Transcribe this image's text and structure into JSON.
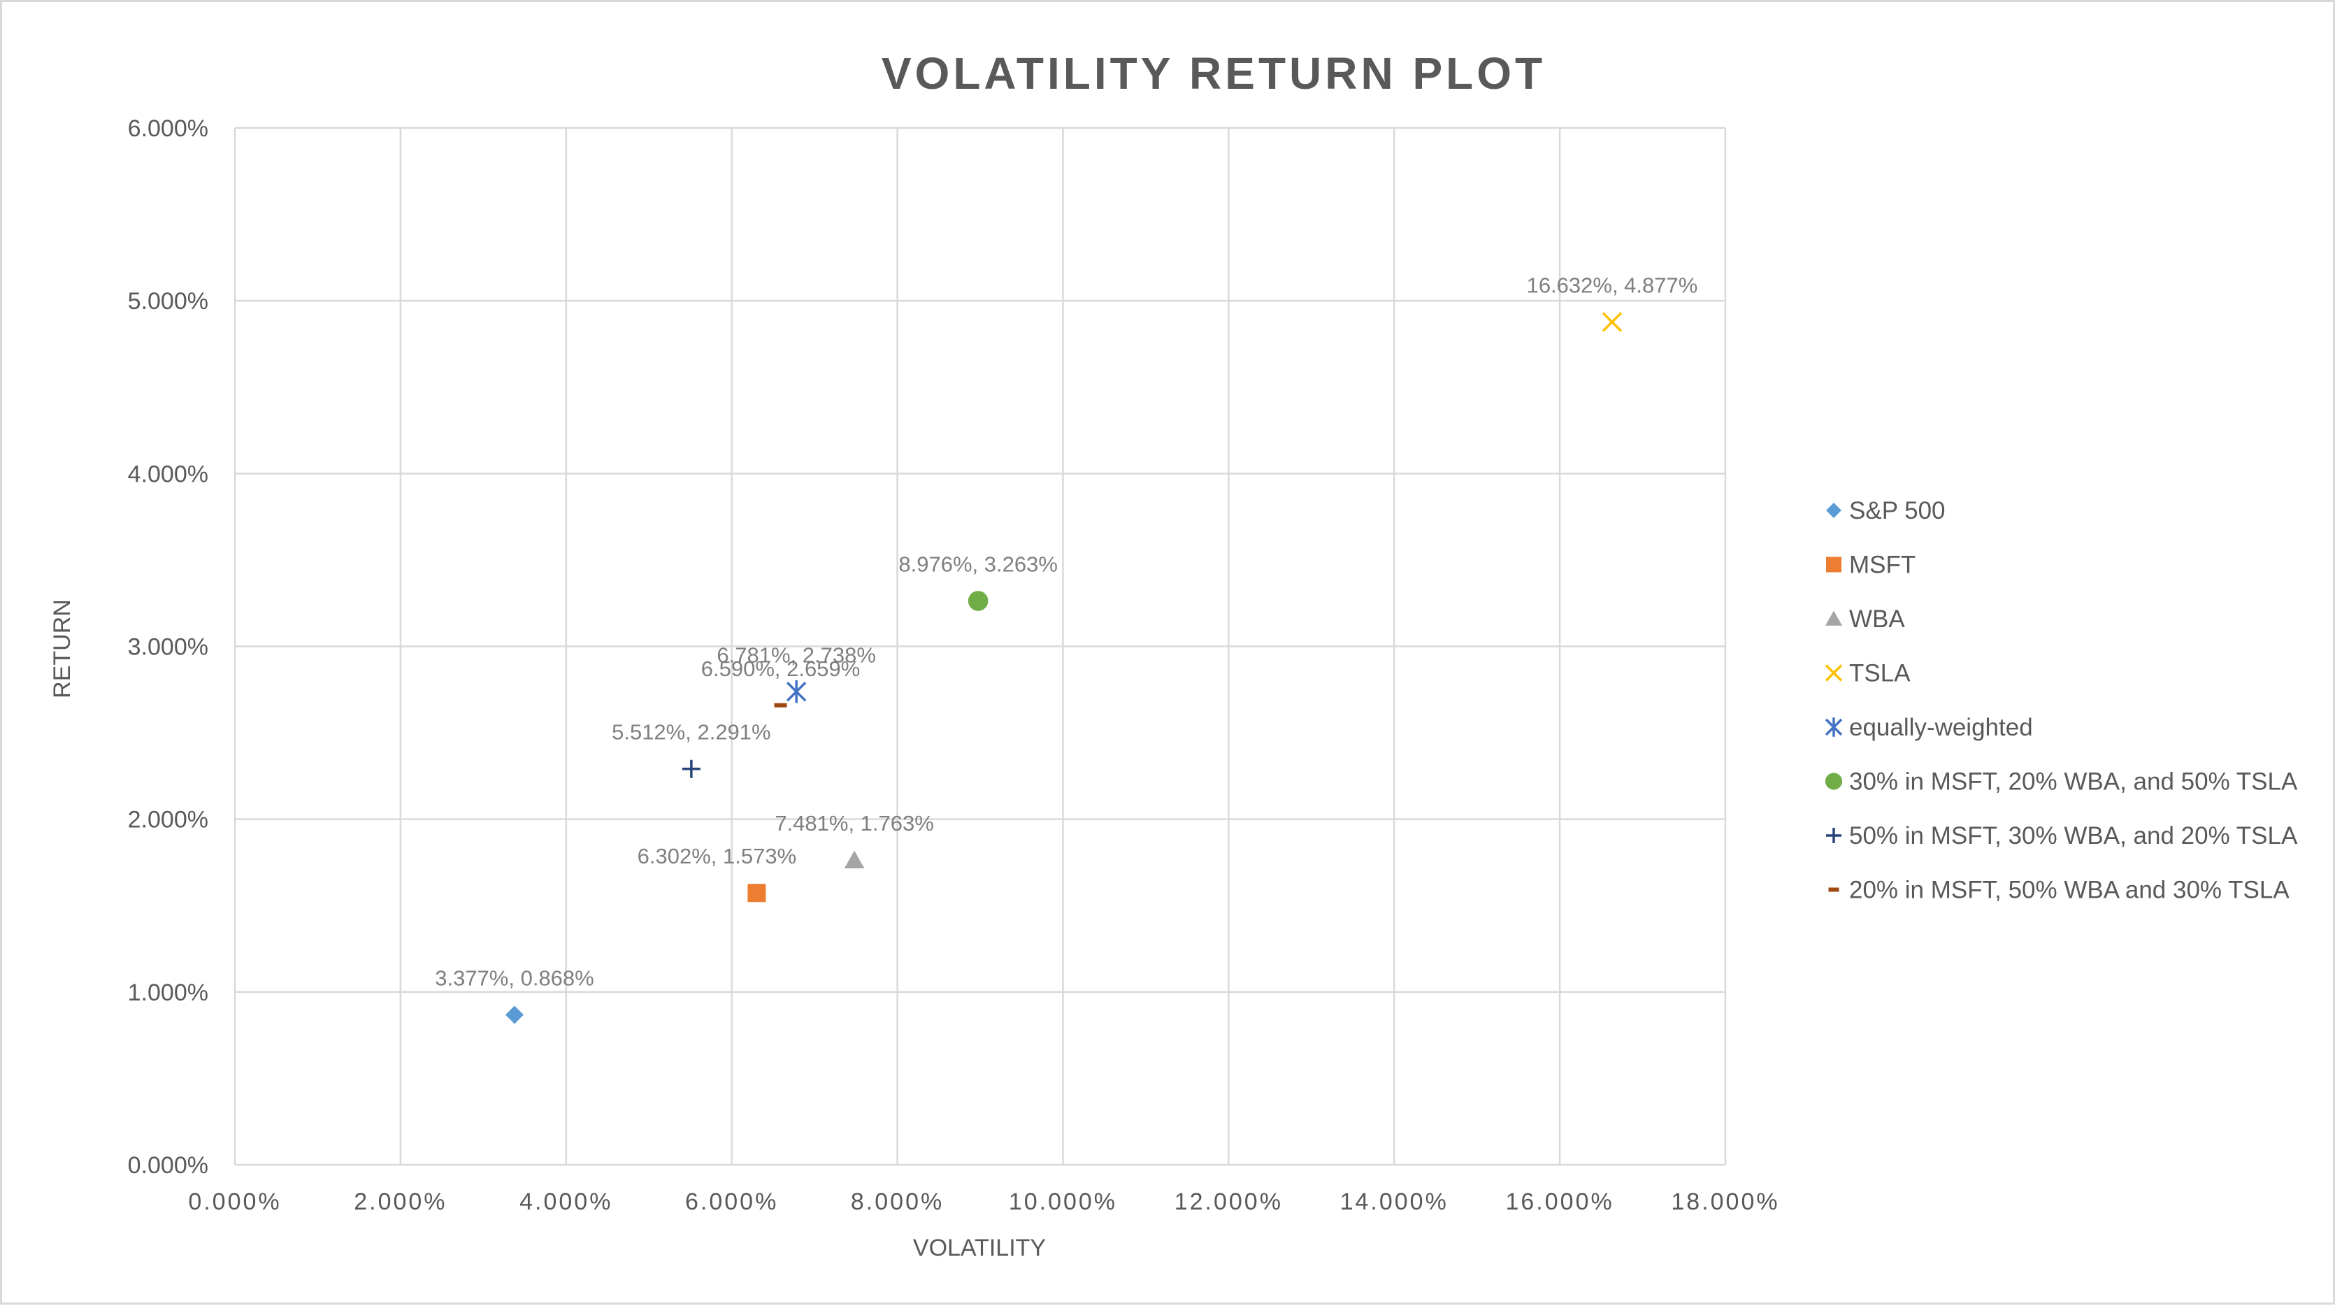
{
  "chart_data": {
    "type": "scatter",
    "title": "VOLATILITY RETURN PLOT",
    "xlabel": "VOLATILITY",
    "ylabel": "RETURN",
    "xlim": [
      0,
      18
    ],
    "ylim": [
      0,
      6
    ],
    "x_ticks": [
      "0.000%",
      "2.000%",
      "4.000%",
      "6.000%",
      "8.000%",
      "10.000%",
      "12.000%",
      "14.000%",
      "16.000%",
      "18.000%"
    ],
    "y_ticks": [
      "0.000%",
      "1.000%",
      "2.000%",
      "3.000%",
      "4.000%",
      "5.000%",
      "6.000%"
    ],
    "grid": true,
    "legend_position": "right",
    "series": [
      {
        "name": "S&P 500",
        "marker": "diamond",
        "color": "#5b9bd5",
        "x": 3.377,
        "y": 0.868,
        "label": "3.377%, 0.868%"
      },
      {
        "name": "MSFT",
        "marker": "square",
        "color": "#ed7d31",
        "x": 6.302,
        "y": 1.573,
        "label": "6.302%, 1.573%"
      },
      {
        "name": "WBA",
        "marker": "triangle",
        "color": "#a5a5a5",
        "x": 7.481,
        "y": 1.763,
        "label": "7.481%, 1.763%"
      },
      {
        "name": "TSLA",
        "marker": "x",
        "color": "#ffc000",
        "x": 16.632,
        "y": 4.877,
        "label": "16.632%, 4.877%"
      },
      {
        "name": "equally-weighted",
        "marker": "star",
        "color": "#4472c4",
        "x": 6.781,
        "y": 2.738,
        "label": "6.781%, 2.738%"
      },
      {
        "name": "30% in MSFT, 20% WBA, and 50% TSLA",
        "marker": "circle",
        "color": "#70ad47",
        "x": 8.976,
        "y": 3.263,
        "label": "8.976%, 3.263%"
      },
      {
        "name": "50% in MSFT, 30% WBA, and 20% TSLA",
        "marker": "plus",
        "color": "#264478",
        "x": 5.512,
        "y": 2.291,
        "label": "5.512%, 2.291%"
      },
      {
        "name": "20% in MSFT, 50% WBA and 30% TSLA",
        "marker": "dash",
        "color": "#9e480e",
        "x": 6.59,
        "y": 2.659,
        "label": "6.590%, 2.659%"
      }
    ]
  }
}
